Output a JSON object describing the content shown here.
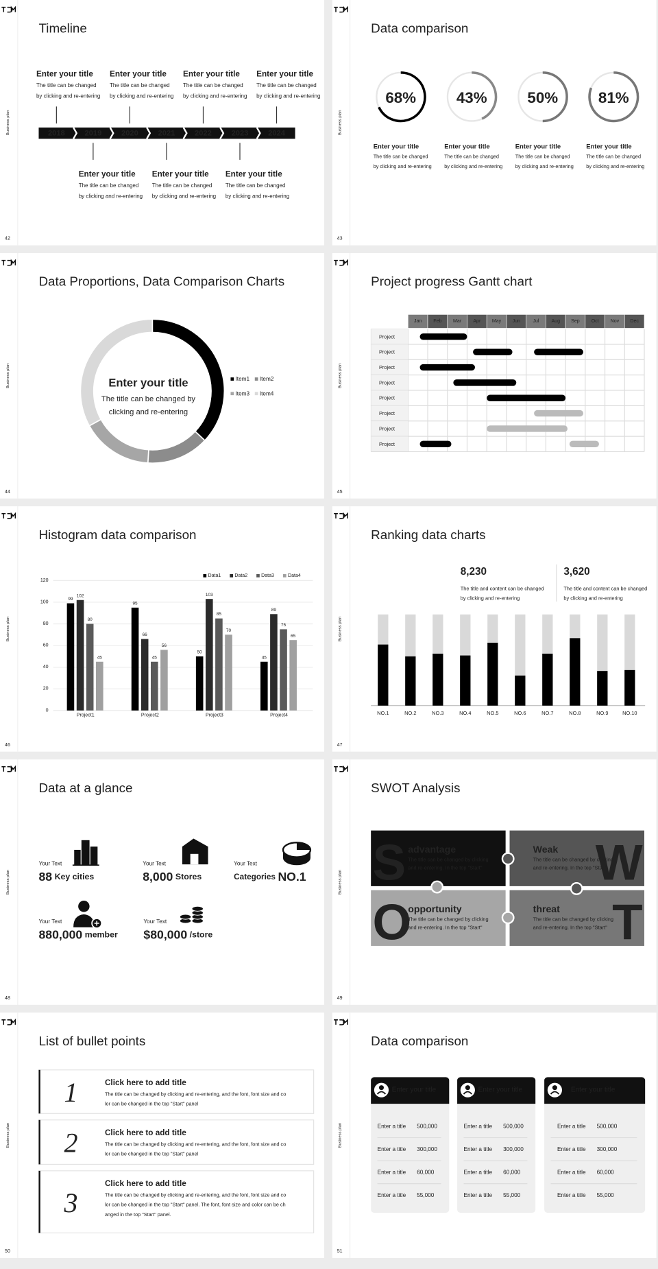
{
  "side_label": "Business plan",
  "slides": [
    {
      "type": "timeline",
      "page": 42,
      "title": "Timeline",
      "years": [
        2018,
        2019,
        2020,
        2021,
        2022,
        2023,
        2024
      ],
      "events": [
        {
          "title": "Enter your title",
          "lines": [
            "The title can be changed",
            "by clicking and re-entering"
          ]
        },
        {
          "title": "Enter your title",
          "lines": [
            "The title can be changed",
            "by clicking and re-entering"
          ]
        },
        {
          "title": "Enter your title",
          "lines": [
            "The title can be changed",
            "by clicking and re-entering"
          ]
        },
        {
          "title": "Enter your title",
          "lines": [
            "The title can be changed",
            "by clicking and re-entering"
          ]
        },
        {
          "title": "Enter your title",
          "lines": [
            "The title can be changed",
            "by clicking and re-entering"
          ]
        },
        {
          "title": "Enter your title",
          "lines": [
            "The title can be changed",
            "by clicking and re-entering"
          ]
        },
        {
          "title": "Enter your title",
          "lines": [
            "The title can be changed",
            "by clicking and re-entering"
          ]
        }
      ]
    },
    {
      "type": "rings",
      "page": 43,
      "title": "Data comparison",
      "values": [
        68,
        43,
        50,
        81
      ],
      "value_labels": [
        "68%",
        "43%",
        "50%",
        "81%"
      ],
      "colors": [
        "#000000",
        "#888888",
        "#777777",
        "#777777"
      ],
      "items": [
        {
          "title": "Enter your title",
          "lines": [
            "The title can be changed",
            "by clicking and re-entering"
          ]
        },
        {
          "title": "Enter your title",
          "lines": [
            "The title can be changed",
            "by clicking and re-entering"
          ]
        },
        {
          "title": "Enter your title",
          "lines": [
            "The title can be changed",
            "by clicking and re-entering"
          ]
        },
        {
          "title": "Enter your title",
          "lines": [
            "The title can be changed",
            "by clicking and re-entering"
          ]
        }
      ]
    },
    {
      "type": "donut",
      "page": 44,
      "title": "Data Proportions, Data Comparison Charts",
      "center_title": "Enter your title",
      "center_lines": [
        "The title can be changed by",
        "clicking and re-entering"
      ],
      "categories": [
        "Item1",
        "Item2",
        "Item3",
        "Item4"
      ],
      "values": [
        37,
        14,
        16,
        33
      ],
      "colors": [
        "#000000",
        "#8c8c8c",
        "#a6a6a6",
        "#d9d9d9"
      ]
    },
    {
      "type": "gantt",
      "page": 45,
      "title": "Project progress Gantt chart",
      "months": [
        "Jan",
        "Feb",
        "Mar",
        "Apr",
        "May",
        "Jun",
        "Jul",
        "Aug",
        "Sep",
        "Oct",
        "Nov",
        "Dec"
      ],
      "xlim": [
        0,
        12
      ],
      "rows": [
        {
          "label": "Project",
          "bars": [
            {
              "start": 0.6,
              "end": 3.0,
              "color": "#000000"
            }
          ]
        },
        {
          "label": "Project",
          "bars": [
            {
              "start": 3.3,
              "end": 5.3,
              "color": "#000000"
            },
            {
              "start": 6.4,
              "end": 8.9,
              "color": "#000000"
            }
          ]
        },
        {
          "label": "Project",
          "bars": [
            {
              "start": 0.6,
              "end": 3.4,
              "color": "#000000"
            }
          ]
        },
        {
          "label": "Project",
          "bars": [
            {
              "start": 2.3,
              "end": 5.5,
              "color": "#000000"
            }
          ]
        },
        {
          "label": "Project",
          "bars": [
            {
              "start": 4.0,
              "end": 8.0,
              "color": "#000000"
            }
          ]
        },
        {
          "label": "Project",
          "bars": [
            {
              "start": 6.4,
              "end": 8.9,
              "color": "#bbbbbb"
            }
          ]
        },
        {
          "label": "Project",
          "bars": [
            {
              "start": 4.0,
              "end": 8.1,
              "color": "#bbbbbb"
            }
          ]
        },
        {
          "label": "Project",
          "bars": [
            {
              "start": 0.6,
              "end": 2.2,
              "color": "#000000"
            },
            {
              "start": 8.2,
              "end": 9.7,
              "color": "#bbbbbb"
            }
          ]
        }
      ]
    },
    {
      "type": "bar",
      "page": 46,
      "title": "Histogram data comparison",
      "categories": [
        "Project1",
        "Project2",
        "Project3",
        "Project4"
      ],
      "series": [
        {
          "name": "Data1",
          "color": "#000000",
          "values": [
            99,
            95,
            50,
            45
          ]
        },
        {
          "name": "Data2",
          "color": "#2b2b2b",
          "values": [
            102,
            66,
            103,
            89
          ]
        },
        {
          "name": "Data3",
          "color": "#5a5a5a",
          "values": [
            80,
            45,
            85,
            75
          ]
        },
        {
          "name": "Data4",
          "color": "#a0a0a0",
          "values": [
            45,
            56,
            70,
            65
          ]
        }
      ],
      "ylim": [
        0,
        120
      ],
      "yticks": [
        0,
        20,
        40,
        60,
        80,
        100,
        120
      ]
    },
    {
      "type": "ranking",
      "page": 47,
      "title": "Ranking data charts",
      "stats": [
        {
          "value": "8,230",
          "lines": [
            "The title and content can be changed",
            "by clicking and re-entering"
          ]
        },
        {
          "value": "3,620",
          "lines": [
            "The title and content can be changed",
            "by clicking and re-entering"
          ]
        }
      ],
      "categories": [
        "NO.1",
        "NO.2",
        "NO.3",
        "NO.4",
        "NO.5",
        "NO.6",
        "NO.7",
        "NO.8",
        "NO.9",
        "NO.10"
      ],
      "values": [
        67,
        54,
        57,
        55,
        69,
        33,
        57,
        74,
        38,
        39
      ],
      "ylim": [
        0,
        100
      ]
    },
    {
      "type": "glance",
      "page": 48,
      "title": "Data at a glance",
      "items": [
        {
          "label": "Your Text",
          "value": "88",
          "unit": "Key cities"
        },
        {
          "label": "Your Text",
          "value": "8,000",
          "unit": "Stores"
        },
        {
          "label": "Your Text",
          "prefix": "Categories",
          "value": "NO.1"
        },
        {
          "label": "Your Text",
          "value": "880,000",
          "unit": "member"
        },
        {
          "label": "Your Text",
          "value": "$80,000",
          "unit": "/store"
        }
      ]
    },
    {
      "type": "swot",
      "page": 49,
      "title": "SWOT Analysis",
      "quadrants": [
        {
          "letter": "S",
          "title": "advantage",
          "lines": [
            "The title can be changed by clicking",
            "and re-entering. In the top \"Start\""
          ]
        },
        {
          "letter": "W",
          "title": "Weak",
          "lines": [
            "The title can be changed by clicking",
            "and re-entering. In the top \"Start\""
          ]
        },
        {
          "letter": "O",
          "title": "opportunity",
          "lines": [
            "The title can be changed by clicking",
            "and re-entering. In the top \"Start\""
          ]
        },
        {
          "letter": "T",
          "title": "threat",
          "lines": [
            "The title can be changed by clicking",
            "and re-entering. In the top \"Start\""
          ]
        }
      ]
    },
    {
      "type": "bullets",
      "page": 50,
      "title": "List of bullet points",
      "bullets": [
        {
          "number": "1",
          "title": "Click here to add title",
          "lines": [
            "The title can be changed by clicking and re-entering, and the font, font size and co",
            "lor can be changed in the top \"Start\" panel"
          ]
        },
        {
          "number": "2",
          "title": "Click here to add title",
          "lines": [
            "The title can be changed by clicking and re-entering, and the font, font size and co",
            "lor can be changed in the top \"Start\" panel"
          ]
        },
        {
          "number": "3",
          "title": "Click here to add title",
          "lines": [
            "The title can be changed by clicking and re-entering, and the font, font size and co",
            "lor can be changed in the top \"Start\" panel. The font, font size and color can be ch",
            "anged in the top \"Start\" panel."
          ]
        }
      ]
    },
    {
      "type": "cards",
      "page": 51,
      "title": "Data comparison",
      "cards": [
        {
          "title": "Enter your title",
          "rows": [
            {
              "label": "Enter a title",
              "value": "500,000"
            },
            {
              "label": "Enter a title",
              "value": "300,000"
            },
            {
              "label": "Enter a title",
              "value": "60,000"
            },
            {
              "label": "Enter a title",
              "value": "55,000"
            }
          ]
        },
        {
          "title": "Enter your title",
          "rows": [
            {
              "label": "Enter a title",
              "value": "500,000"
            },
            {
              "label": "Enter a title",
              "value": "300,000"
            },
            {
              "label": "Enter a title",
              "value": "60,000"
            },
            {
              "label": "Enter a title",
              "value": "55,000"
            }
          ]
        },
        {
          "title": "Enter your title",
          "rows": [
            {
              "label": "Enter a title",
              "value": "500,000"
            },
            {
              "label": "Enter a title",
              "value": "300,000"
            },
            {
              "label": "Enter a title",
              "value": "60,000"
            },
            {
              "label": "Enter a title",
              "value": "55,000"
            }
          ]
        }
      ]
    }
  ]
}
